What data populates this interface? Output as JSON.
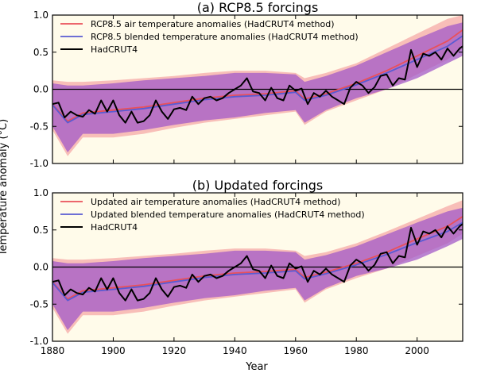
{
  "figure": {
    "ylabel": "Temperature anomaly (°C)",
    "xlabel": "Year"
  },
  "chart_data": [
    {
      "type": "line",
      "title": "(a) RCP8.5 forcings",
      "xlim": [
        1880,
        2015
      ],
      "ylim": [
        -1.0,
        1.0
      ],
      "x_ticks": [
        "1880",
        "1900",
        "1920",
        "1940",
        "1960",
        "1980",
        "2000"
      ],
      "y_ticks": [
        "-1.0",
        "-0.5",
        "0.0",
        "0.5",
        "1.0"
      ],
      "zero_line": 0.0,
      "legend": "top-left",
      "colors": {
        "air": "#e9505a",
        "blended": "#5a5bd2",
        "hadcrut": "#000000",
        "band_air": "#f7b7b2",
        "band_blended": "#a35ac8",
        "background": "#fffbea"
      },
      "series": [
        {
          "name": "RCP8.5 air temperature anomalies (HadCRUT4 method)",
          "key": "air",
          "x": [
            1880,
            1885,
            1890,
            1900,
            1910,
            1920,
            1930,
            1940,
            1950,
            1960,
            1963,
            1970,
            1980,
            1990,
            2000,
            2010,
            2015
          ],
          "values": [
            -0.2,
            -0.43,
            -0.32,
            -0.28,
            -0.24,
            -0.18,
            -0.12,
            -0.08,
            -0.06,
            -0.02,
            -0.13,
            -0.06,
            0.08,
            0.25,
            0.45,
            0.65,
            0.8
          ]
        },
        {
          "name": "RCP8.5 blended temperature anomalies (HadCRUT4 method)",
          "key": "blended",
          "x": [
            1880,
            1885,
            1890,
            1900,
            1910,
            1920,
            1930,
            1940,
            1950,
            1960,
            1963,
            1970,
            1980,
            1990,
            2000,
            2010,
            2015
          ],
          "values": [
            -0.21,
            -0.45,
            -0.34,
            -0.3,
            -0.26,
            -0.2,
            -0.14,
            -0.1,
            -0.08,
            -0.04,
            -0.15,
            -0.08,
            0.06,
            0.22,
            0.4,
            0.58,
            0.72
          ]
        },
        {
          "name": "HadCRUT4",
          "key": "hadcrut",
          "x": [
            1880,
            1882,
            1884,
            1886,
            1888,
            1890,
            1892,
            1894,
            1896,
            1898,
            1900,
            1902,
            1904,
            1906,
            1908,
            1910,
            1912,
            1914,
            1916,
            1918,
            1920,
            1922,
            1924,
            1926,
            1928,
            1930,
            1932,
            1934,
            1936,
            1938,
            1940,
            1942,
            1944,
            1946,
            1948,
            1950,
            1952,
            1954,
            1956,
            1958,
            1960,
            1962,
            1964,
            1966,
            1968,
            1970,
            1972,
            1974,
            1976,
            1978,
            1980,
            1982,
            1984,
            1986,
            1988,
            1990,
            1992,
            1994,
            1996,
            1998,
            2000,
            2002,
            2004,
            2006,
            2008,
            2010,
            2012,
            2014,
            2015
          ],
          "values": [
            -0.2,
            -0.18,
            -0.38,
            -0.3,
            -0.35,
            -0.37,
            -0.28,
            -0.33,
            -0.15,
            -0.3,
            -0.15,
            -0.35,
            -0.45,
            -0.3,
            -0.45,
            -0.43,
            -0.35,
            -0.15,
            -0.3,
            -0.4,
            -0.27,
            -0.25,
            -0.28,
            -0.1,
            -0.2,
            -0.12,
            -0.1,
            -0.15,
            -0.12,
            -0.05,
            0.0,
            0.05,
            0.15,
            -0.03,
            -0.05,
            -0.15,
            0.02,
            -0.12,
            -0.15,
            0.05,
            -0.02,
            0.01,
            -0.2,
            -0.05,
            -0.1,
            -0.02,
            -0.1,
            -0.15,
            -0.2,
            0.02,
            0.1,
            0.05,
            -0.05,
            0.03,
            0.18,
            0.2,
            0.05,
            0.15,
            0.13,
            0.53,
            0.3,
            0.48,
            0.45,
            0.5,
            0.4,
            0.55,
            0.45,
            0.55,
            0.58
          ]
        }
      ],
      "bands": [
        {
          "key": "band_air",
          "x": [
            1880,
            1885,
            1890,
            1900,
            1910,
            1920,
            1930,
            1940,
            1950,
            1960,
            1963,
            1970,
            1980,
            1990,
            2000,
            2010,
            2015
          ],
          "lower": [
            -0.55,
            -0.9,
            -0.65,
            -0.65,
            -0.6,
            -0.52,
            -0.45,
            -0.4,
            -0.35,
            -0.3,
            -0.48,
            -0.3,
            -0.15,
            0.0,
            0.2,
            0.4,
            0.55
          ],
          "upper": [
            0.12,
            0.1,
            0.1,
            0.12,
            0.15,
            0.18,
            0.22,
            0.25,
            0.25,
            0.22,
            0.15,
            0.22,
            0.35,
            0.55,
            0.75,
            0.95,
            1.0
          ]
        },
        {
          "key": "band_blended",
          "x": [
            1880,
            1885,
            1890,
            1900,
            1910,
            1920,
            1930,
            1940,
            1950,
            1960,
            1963,
            1970,
            1980,
            1990,
            2000,
            2010,
            2015
          ],
          "lower": [
            -0.5,
            -0.85,
            -0.6,
            -0.6,
            -0.55,
            -0.48,
            -0.42,
            -0.38,
            -0.32,
            -0.28,
            -0.45,
            -0.28,
            -0.12,
            0.0,
            0.15,
            0.35,
            0.45
          ],
          "upper": [
            0.08,
            0.05,
            0.05,
            0.08,
            0.12,
            0.15,
            0.18,
            0.22,
            0.22,
            0.2,
            0.1,
            0.18,
            0.32,
            0.5,
            0.68,
            0.85,
            0.9
          ]
        }
      ]
    },
    {
      "type": "line",
      "title": "(b) Updated forcings",
      "xlim": [
        1880,
        2015
      ],
      "ylim": [
        -1.0,
        1.0
      ],
      "x_ticks": [
        "1880",
        "1900",
        "1920",
        "1940",
        "1960",
        "1980",
        "2000"
      ],
      "y_ticks": [
        "-1.0",
        "-0.5",
        "0.0",
        "0.5",
        "1.0"
      ],
      "zero_line": 0.0,
      "legend": "top-left",
      "colors": {
        "air": "#e9505a",
        "blended": "#5a5bd2",
        "hadcrut": "#000000",
        "band_air": "#f7b7b2",
        "band_blended": "#a35ac8",
        "background": "#fffbea"
      },
      "series": [
        {
          "name": "Updated air temperature anomalies (HadCRUT4 method)",
          "key": "air",
          "x": [
            1880,
            1885,
            1890,
            1900,
            1910,
            1920,
            1930,
            1940,
            1950,
            1960,
            1963,
            1970,
            1980,
            1990,
            2000,
            2010,
            2015
          ],
          "values": [
            -0.2,
            -0.43,
            -0.32,
            -0.28,
            -0.24,
            -0.18,
            -0.12,
            -0.08,
            -0.06,
            -0.03,
            -0.14,
            -0.07,
            0.05,
            0.2,
            0.38,
            0.55,
            0.68
          ]
        },
        {
          "name": "Updated blended temperature anomalies (HadCRUT4 method)",
          "key": "blended",
          "x": [
            1880,
            1885,
            1890,
            1900,
            1910,
            1920,
            1930,
            1940,
            1950,
            1960,
            1963,
            1970,
            1980,
            1990,
            2000,
            2010,
            2015
          ],
          "values": [
            -0.21,
            -0.45,
            -0.34,
            -0.3,
            -0.26,
            -0.2,
            -0.14,
            -0.1,
            -0.08,
            -0.05,
            -0.16,
            -0.09,
            0.03,
            0.17,
            0.33,
            0.48,
            0.6
          ]
        },
        {
          "name": "HadCRUT4",
          "key": "hadcrut",
          "x": [
            1880,
            1882,
            1884,
            1886,
            1888,
            1890,
            1892,
            1894,
            1896,
            1898,
            1900,
            1902,
            1904,
            1906,
            1908,
            1910,
            1912,
            1914,
            1916,
            1918,
            1920,
            1922,
            1924,
            1926,
            1928,
            1930,
            1932,
            1934,
            1936,
            1938,
            1940,
            1942,
            1944,
            1946,
            1948,
            1950,
            1952,
            1954,
            1956,
            1958,
            1960,
            1962,
            1964,
            1966,
            1968,
            1970,
            1972,
            1974,
            1976,
            1978,
            1980,
            1982,
            1984,
            1986,
            1988,
            1990,
            1992,
            1994,
            1996,
            1998,
            2000,
            2002,
            2004,
            2006,
            2008,
            2010,
            2012,
            2014,
            2015
          ],
          "values": [
            -0.2,
            -0.18,
            -0.38,
            -0.3,
            -0.35,
            -0.37,
            -0.28,
            -0.33,
            -0.15,
            -0.3,
            -0.15,
            -0.35,
            -0.45,
            -0.3,
            -0.45,
            -0.43,
            -0.35,
            -0.15,
            -0.3,
            -0.4,
            -0.27,
            -0.25,
            -0.28,
            -0.1,
            -0.2,
            -0.12,
            -0.1,
            -0.15,
            -0.12,
            -0.05,
            0.0,
            0.05,
            0.15,
            -0.03,
            -0.05,
            -0.15,
            0.02,
            -0.12,
            -0.15,
            0.05,
            -0.02,
            0.01,
            -0.2,
            -0.05,
            -0.1,
            -0.02,
            -0.1,
            -0.15,
            -0.2,
            0.02,
            0.1,
            0.05,
            -0.05,
            0.03,
            0.18,
            0.2,
            0.05,
            0.15,
            0.13,
            0.53,
            0.3,
            0.48,
            0.45,
            0.5,
            0.4,
            0.55,
            0.45,
            0.55,
            0.58
          ]
        }
      ],
      "bands": [
        {
          "key": "band_air",
          "x": [
            1880,
            1885,
            1890,
            1900,
            1910,
            1920,
            1930,
            1940,
            1950,
            1960,
            1963,
            1970,
            1980,
            1990,
            2000,
            2010,
            2015
          ],
          "lower": [
            -0.55,
            -0.9,
            -0.65,
            -0.65,
            -0.6,
            -0.52,
            -0.45,
            -0.4,
            -0.35,
            -0.3,
            -0.48,
            -0.3,
            -0.15,
            -0.02,
            0.15,
            0.32,
            0.45
          ],
          "upper": [
            0.12,
            0.1,
            0.1,
            0.12,
            0.15,
            0.18,
            0.22,
            0.25,
            0.25,
            0.22,
            0.15,
            0.2,
            0.32,
            0.48,
            0.65,
            0.82,
            0.9
          ]
        },
        {
          "key": "band_blended",
          "x": [
            1880,
            1885,
            1890,
            1900,
            1910,
            1920,
            1930,
            1940,
            1950,
            1960,
            1963,
            1970,
            1980,
            1990,
            2000,
            2010,
            2015
          ],
          "lower": [
            -0.5,
            -0.85,
            -0.6,
            -0.6,
            -0.55,
            -0.48,
            -0.42,
            -0.38,
            -0.32,
            -0.28,
            -0.45,
            -0.28,
            -0.12,
            -0.02,
            0.1,
            0.28,
            0.38
          ],
          "upper": [
            0.08,
            0.05,
            0.05,
            0.08,
            0.12,
            0.15,
            0.18,
            0.22,
            0.22,
            0.2,
            0.1,
            0.16,
            0.28,
            0.44,
            0.6,
            0.75,
            0.8
          ]
        }
      ]
    }
  ]
}
